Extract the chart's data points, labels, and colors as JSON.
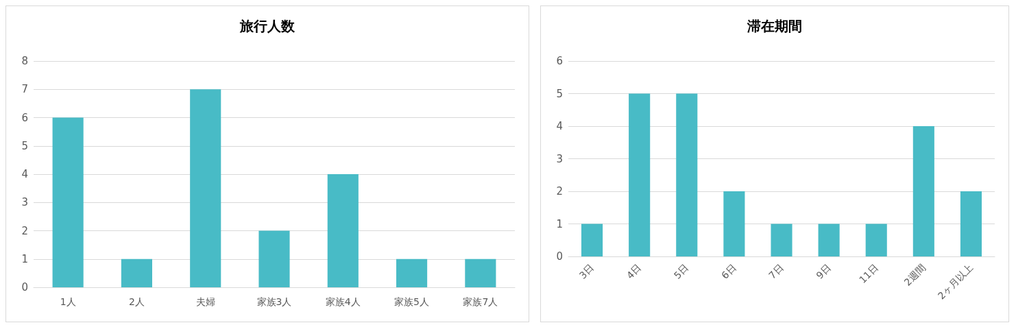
{
  "chart_data": [
    {
      "type": "bar",
      "title": "旅行人数",
      "categories": [
        "1人",
        "2人",
        "夫婦",
        "家族3人",
        "家族4人",
        "家族5人",
        "家族7人"
      ],
      "values": [
        6,
        1,
        7,
        2,
        4,
        1,
        1
      ],
      "color": "#48bbc6",
      "ylim": [
        0,
        8
      ],
      "yticks": [
        0,
        1,
        2,
        3,
        4,
        5,
        6,
        7,
        8
      ],
      "grid": "y"
    },
    {
      "type": "bar",
      "title": "滞在期間",
      "categories": [
        "3日",
        "4日",
        "5日",
        "6日",
        "7日",
        "9日",
        "11日",
        "2週間",
        "2ヶ月以上"
      ],
      "values": [
        1,
        5,
        5,
        2,
        1,
        1,
        1,
        4,
        2
      ],
      "color": "#48bbc6",
      "ylim": [
        0,
        6
      ],
      "yticks": [
        0,
        1,
        2,
        3,
        4,
        5,
        6
      ],
      "grid": "y"
    }
  ]
}
